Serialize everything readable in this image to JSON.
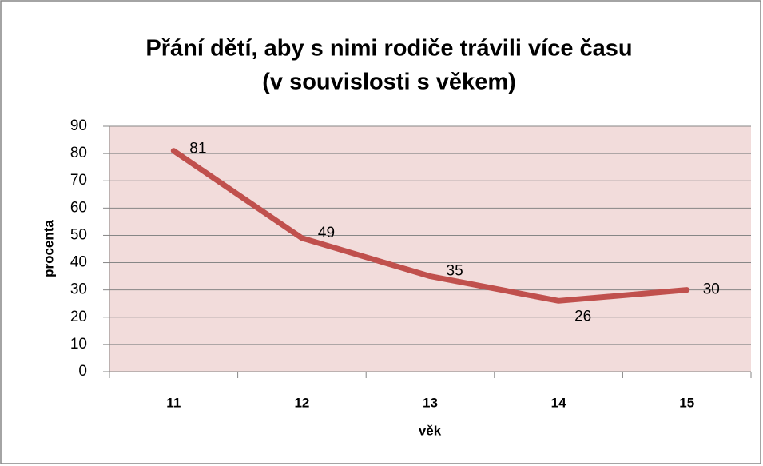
{
  "chart_data": {
    "type": "line",
    "title": [
      "Přání dětí, aby s nimi rodiče trávili více času",
      "(v souvislosti s věkem)"
    ],
    "x_label": "věk",
    "y_label": "procenta",
    "categories": [
      "11",
      "12",
      "13",
      "14",
      "15"
    ],
    "values": [
      81,
      49,
      35,
      26,
      30
    ],
    "color": "#c0504d",
    "ylim": [
      0,
      90
    ],
    "yticks": [
      0,
      10,
      20,
      30,
      40,
      50,
      60,
      70,
      80,
      90
    ],
    "grid": true
  }
}
